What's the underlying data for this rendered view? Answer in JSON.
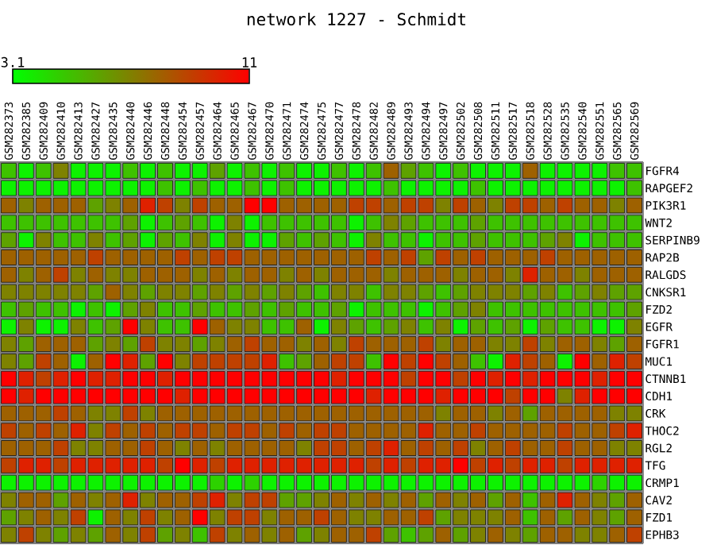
{
  "chart_data": {
    "type": "heatmap",
    "title": "network 1227 - Schmidt",
    "categories": [
      "GSM282373",
      "GSM282385",
      "GSM282409",
      "GSM282410",
      "GSM282413",
      "GSM282427",
      "GSM282435",
      "GSM282440",
      "GSM282446",
      "GSM282448",
      "GSM282454",
      "GSM282457",
      "GSM282464",
      "GSM282465",
      "GSM282467",
      "GSM282470",
      "GSM282471",
      "GSM282474",
      "GSM282475",
      "GSM282477",
      "GSM282478",
      "GSM282482",
      "GSM282489",
      "GSM282493",
      "GSM282494",
      "GSM282497",
      "GSM282502",
      "GSM282508",
      "GSM282511",
      "GSM282517",
      "GSM282518",
      "GSM282528",
      "GSM282535",
      "GSM282540",
      "GSM282551",
      "GSM282565",
      "GSM282569"
    ],
    "y_categories": [
      "FGFR4",
      "RAPGEF2",
      "PIK3R1",
      "WNT2",
      "SERPINB9",
      "RAP2B",
      "RALGDS",
      "CNKSR1",
      "FZD2",
      "EGFR",
      "FGFR1",
      "MUC1",
      "CTNNB1",
      "CDH1",
      "CRK",
      "THOC2",
      "RGL2",
      "TFG",
      "CRMP1",
      "CAV2",
      "FZD1",
      "EPHB3"
    ],
    "cells": [
      [
        5,
        3.5,
        5,
        7,
        3.5,
        3.5,
        3.5,
        5,
        3.5,
        5,
        3.5,
        3.5,
        6,
        3.5,
        5,
        3.5,
        5,
        3.5,
        3.5,
        5,
        3.5,
        5,
        8,
        6,
        5,
        3.5,
        5,
        3.5,
        3.5,
        3.5,
        8,
        3.5,
        3.5,
        3.5,
        3.5,
        5,
        5
      ],
      [
        3.5,
        3.5,
        3.5,
        3.5,
        3.5,
        3.5,
        3.5,
        3.5,
        3.5,
        5,
        3.5,
        5,
        3.5,
        3.5,
        5,
        3.5,
        5,
        3.5,
        3.5,
        3.5,
        3.5,
        3.5,
        5,
        3.5,
        3.5,
        3.5,
        3.5,
        5,
        3.5,
        3.5,
        3.5,
        3.5,
        3.5,
        3.5,
        3.5,
        3.5,
        5
      ],
      [
        8,
        7,
        8,
        8,
        8,
        6,
        7,
        8,
        10,
        9,
        7,
        9,
        8,
        8,
        11,
        11,
        8,
        8,
        8,
        8,
        9,
        9,
        8,
        9,
        9,
        7,
        9,
        8,
        7,
        9,
        9,
        8,
        9,
        8,
        8,
        7,
        8
      ],
      [
        5,
        5,
        5,
        5,
        5,
        5,
        5,
        6,
        3.5,
        5,
        6,
        5,
        3.5,
        7,
        3.5,
        5,
        5,
        5,
        5,
        5,
        3.5,
        5,
        7,
        6,
        5,
        5,
        5,
        6,
        5,
        5,
        5,
        5,
        5,
        5,
        5,
        5,
        5
      ],
      [
        6,
        3.5,
        7,
        5,
        5,
        7,
        5,
        6,
        3.5,
        6,
        5,
        7,
        3.5,
        7,
        3.5,
        3.5,
        6,
        5,
        6,
        5,
        3.5,
        7,
        5,
        5,
        3.5,
        5,
        5,
        6,
        5,
        5,
        5,
        6,
        7,
        3.5,
        5,
        5,
        5
      ],
      [
        8,
        8,
        8,
        8,
        8,
        9,
        8,
        8,
        8,
        8,
        9,
        8,
        9,
        9,
        8,
        8,
        8,
        8,
        8,
        8,
        8,
        9,
        8,
        9,
        6,
        9,
        8,
        9,
        8,
        8,
        8,
        9,
        8,
        8,
        8,
        8,
        8
      ],
      [
        8,
        7,
        8,
        9,
        7,
        8,
        7,
        7,
        8,
        8,
        8,
        7,
        8,
        7,
        8,
        8,
        7,
        8,
        7,
        8,
        8,
        8,
        7,
        8,
        8,
        8,
        7,
        8,
        8,
        7,
        10,
        8,
        8,
        7,
        8,
        8,
        8
      ],
      [
        7,
        7,
        7,
        7,
        7,
        6,
        8,
        7,
        6,
        7,
        7,
        6,
        7,
        6,
        7,
        6,
        7,
        6,
        5,
        7,
        7,
        5,
        7,
        7,
        6,
        5,
        6,
        7,
        7,
        7,
        6,
        7,
        5,
        6,
        7,
        6,
        6
      ],
      [
        5,
        6,
        5,
        5,
        3.5,
        5,
        3.5,
        6,
        7,
        5,
        5,
        6,
        5,
        5,
        6,
        5,
        6,
        5,
        5,
        6,
        3.5,
        5,
        5,
        5,
        3.5,
        5,
        6,
        7,
        5,
        5,
        5,
        5,
        5,
        5,
        5,
        5,
        6
      ],
      [
        3.5,
        7,
        3.5,
        3.5,
        7,
        5,
        6,
        11,
        7,
        5,
        5,
        11,
        8,
        7,
        7,
        5,
        5,
        8,
        3.5,
        7,
        6,
        5,
        6,
        7,
        5,
        7,
        3.5,
        6,
        5,
        6,
        3.5,
        6,
        5,
        5,
        3.5,
        3.5,
        7
      ],
      [
        7,
        6,
        8,
        8,
        8,
        6,
        7,
        6,
        9,
        7,
        7,
        6,
        7,
        8,
        9,
        8,
        8,
        7,
        8,
        7,
        9,
        8,
        8,
        8,
        9,
        7,
        8,
        8,
        7,
        7,
        9,
        7,
        8,
        8,
        7,
        6,
        8
      ],
      [
        7,
        6,
        9,
        8,
        3.5,
        8,
        11,
        10,
        6,
        11,
        7,
        9,
        9,
        9,
        9,
        10,
        5,
        6,
        8,
        9,
        9,
        5,
        11,
        9,
        11,
        9,
        8,
        5,
        3.5,
        10,
        9,
        8,
        3.5,
        11,
        8,
        10,
        9
      ],
      [
        11,
        10,
        9,
        10,
        11,
        10,
        10,
        11,
        11,
        10,
        11,
        11,
        11,
        11,
        11,
        11,
        11,
        11,
        11,
        10,
        11,
        11,
        11,
        9,
        11,
        11,
        9,
        11,
        10,
        11,
        10,
        11,
        11,
        11,
        10,
        11,
        11
      ],
      [
        11,
        10,
        11,
        11,
        11,
        11,
        11,
        11,
        11,
        11,
        10,
        11,
        11,
        11,
        11,
        11,
        11,
        11,
        11,
        11,
        11,
        10,
        11,
        11,
        11,
        10,
        11,
        11,
        11,
        9,
        11,
        11,
        7,
        10,
        11,
        11,
        11
      ],
      [
        8,
        8,
        8,
        9,
        8,
        7,
        7,
        9,
        7,
        8,
        8,
        8,
        8,
        8,
        8,
        8,
        8,
        8,
        8,
        8,
        8,
        8,
        8,
        8,
        8,
        7,
        8,
        8,
        7,
        8,
        6,
        8,
        8,
        8,
        8,
        7,
        7
      ],
      [
        9,
        8,
        9,
        8,
        10,
        7,
        9,
        8,
        9,
        8,
        9,
        9,
        8,
        9,
        9,
        8,
        9,
        8,
        9,
        9,
        8,
        8,
        8,
        8,
        10,
        8,
        8,
        9,
        8,
        8,
        8,
        8,
        9,
        8,
        8,
        9,
        10
      ],
      [
        8,
        8,
        8,
        9,
        7,
        7,
        8,
        8,
        9,
        8,
        7,
        8,
        7,
        8,
        8,
        8,
        8,
        7,
        9,
        9,
        8,
        9,
        10,
        8,
        9,
        8,
        9,
        7,
        8,
        9,
        8,
        8,
        9,
        8,
        8,
        7,
        7
      ],
      [
        9,
        10,
        10,
        9,
        10,
        10,
        10,
        10,
        10,
        9,
        11,
        10,
        9,
        10,
        10,
        10,
        10,
        10,
        10,
        10,
        10,
        9,
        10,
        9,
        10,
        10,
        11,
        9,
        10,
        9,
        10,
        10,
        9,
        10,
        10,
        10,
        10
      ],
      [
        3.5,
        3.5,
        3.5,
        3.5,
        3.5,
        3.5,
        3.5,
        3.5,
        3.5,
        3.5,
        3.5,
        3.5,
        4.5,
        3.5,
        4.5,
        3.5,
        3.5,
        3.5,
        3.5,
        3.5,
        3.5,
        3.5,
        3.5,
        3.5,
        3.5,
        3.5,
        3.5,
        3.5,
        3.5,
        3.5,
        3.5,
        3.5,
        3.5,
        3.5,
        4.5,
        3.5,
        3.5
      ],
      [
        7,
        8,
        8,
        6,
        8,
        7,
        8,
        10,
        7,
        8,
        8,
        9,
        10,
        7,
        9,
        9,
        6,
        6,
        7,
        8,
        7,
        8,
        7,
        8,
        6,
        8,
        7,
        8,
        6,
        8,
        5,
        8,
        10,
        8,
        7,
        6,
        8
      ],
      [
        6,
        7,
        8,
        7,
        9,
        3.5,
        8,
        7,
        9,
        7,
        8,
        11,
        7,
        9,
        9,
        7,
        8,
        8,
        9,
        8,
        7,
        7,
        8,
        8,
        9,
        6,
        7,
        7,
        7,
        8,
        5,
        8,
        6,
        8,
        7,
        6,
        8
      ],
      [
        7,
        9,
        7,
        6,
        7,
        6,
        8,
        7,
        9,
        6,
        7,
        5,
        9,
        7,
        8,
        7,
        8,
        6,
        7,
        8,
        8,
        9,
        6,
        5,
        6,
        8,
        6,
        7,
        8,
        7,
        6,
        8,
        8,
        7,
        7,
        8,
        9
      ]
    ],
    "clim": [
      3.1,
      11
    ],
    "cticks": [
      3.1,
      11
    ],
    "grid": true
  }
}
